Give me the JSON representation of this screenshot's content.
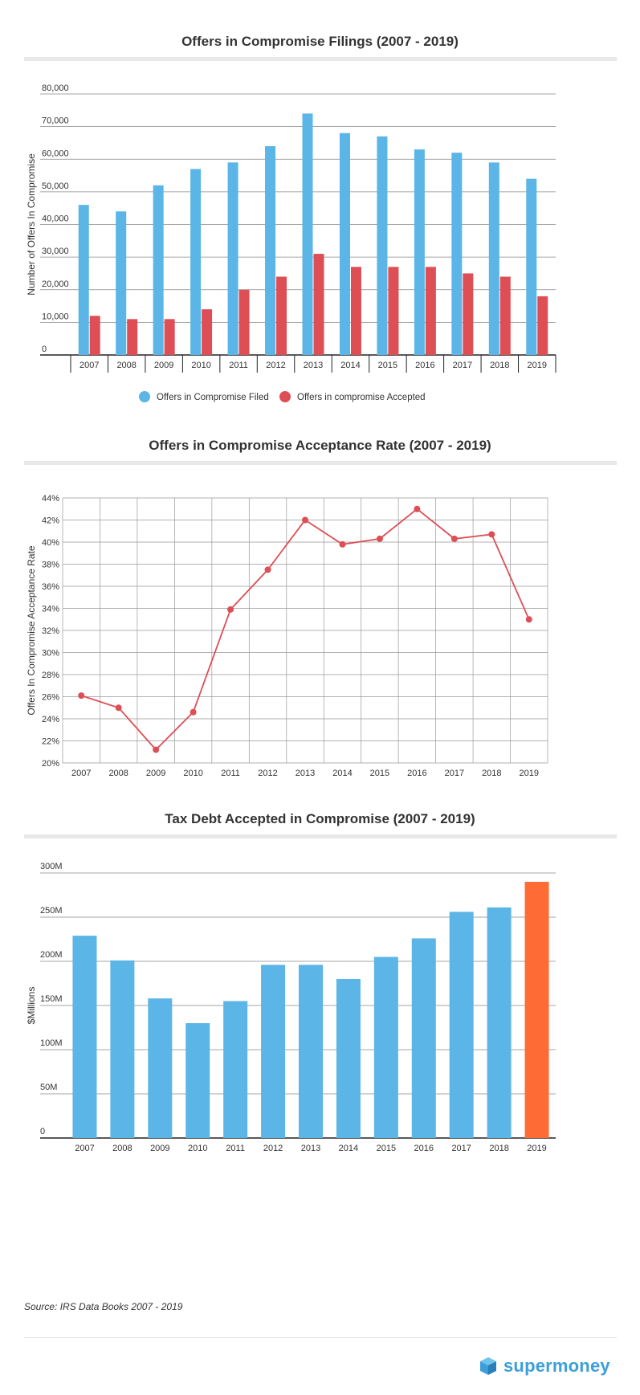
{
  "chart_data": [
    {
      "type": "bar",
      "title": "Offers in Compromise Filings (2007 - 2019)",
      "ylabel": "Number of Offers In Compromise",
      "xlabel": "",
      "ylim": [
        0,
        80000
      ],
      "yticks": [
        "0",
        "10,000",
        "20,000",
        "30,000",
        "40,000",
        "50,000",
        "60,000",
        "70,000",
        "80,000"
      ],
      "categories": [
        "2007",
        "2008",
        "2009",
        "2010",
        "2011",
        "2012",
        "2013",
        "2014",
        "2015",
        "2016",
        "2017",
        "2018",
        "2019"
      ],
      "series": [
        {
          "name": "Offers in Compromise Filed",
          "color": "#5bb5e6",
          "values": [
            46000,
            44000,
            52000,
            57000,
            59000,
            64000,
            74000,
            68000,
            67000,
            63000,
            62000,
            59000,
            54000
          ]
        },
        {
          "name": "Offers in compromise Accepted",
          "color": "#dd4f55",
          "values": [
            12000,
            11000,
            11000,
            14000,
            20000,
            24000,
            31000,
            27000,
            27000,
            27000,
            25000,
            24000,
            18000
          ]
        }
      ],
      "legend": "bottom",
      "grid": true
    },
    {
      "type": "line",
      "title": "Offers in Compromise Acceptance Rate (2007 - 2019)",
      "ylabel": "Offers In Compromise Acceptance Rate",
      "xlabel": "",
      "ylim": [
        20,
        44
      ],
      "yticks": [
        "20%",
        "22%",
        "24%",
        "26%",
        "28%",
        "30%",
        "32%",
        "34%",
        "36%",
        "38%",
        "40%",
        "42%",
        "44%"
      ],
      "categories": [
        "2007",
        "2008",
        "2009",
        "2010",
        "2011",
        "2012",
        "2013",
        "2014",
        "2015",
        "2016",
        "2017",
        "2018",
        "2019"
      ],
      "series": [
        {
          "color": "#dd4f55",
          "values": [
            26.1,
            25.0,
            21.2,
            24.6,
            33.9,
            37.5,
            42.0,
            39.8,
            40.3,
            43.0,
            40.3,
            40.7,
            33.0
          ]
        }
      ],
      "grid": true
    },
    {
      "type": "bar",
      "title": "Tax Debt Accepted in Compromise (2007 - 2019)",
      "ylabel": "$Millions",
      "xlabel": "",
      "ylim": [
        0,
        300
      ],
      "yticks": [
        "0",
        "50M",
        "100M",
        "150M",
        "200M",
        "250M",
        "300M"
      ],
      "categories": [
        "2007",
        "2008",
        "2009",
        "2010",
        "2011",
        "2012",
        "2013",
        "2014",
        "2015",
        "2016",
        "2017",
        "2018",
        "2019"
      ],
      "series": [
        {
          "color": "#5bb5e6",
          "values": [
            229,
            201,
            158,
            130,
            155,
            196,
            196,
            180,
            205,
            226,
            256,
            261,
            290
          ]
        }
      ],
      "highlight_color": "#ff6b35",
      "highlight_index": 12,
      "grid": true
    }
  ],
  "source": "Source: IRS Data Books 2007 - 2019",
  "brand": {
    "name": "supermoney",
    "color": "#3d9fd9"
  }
}
